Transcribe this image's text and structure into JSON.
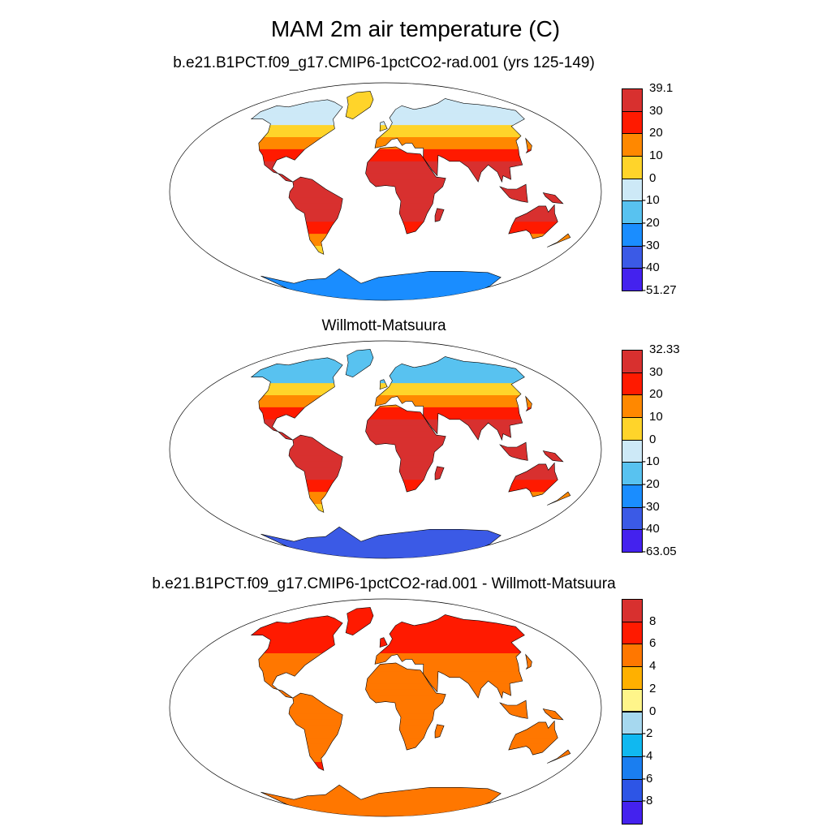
{
  "title": "MAM 2m air temperature (C)",
  "panels": [
    {
      "title": "b.e21.B1PCT.f09_g17.CMIP6-1pctCO2-rad.001 (yrs 125-149)",
      "colorbar": {
        "labels": [
          "39.1",
          "30",
          "20",
          "10",
          "0",
          "-10",
          "-20",
          "-30",
          "-40",
          "-51.27"
        ],
        "colors": [
          "#d8302f",
          "#ff1a00",
          "#ff8800",
          "#ffd42a",
          "#cde9f7",
          "#58c2f0",
          "#1a8dff",
          "#3b5ae6",
          "#4422ee"
        ]
      }
    },
    {
      "title": "Willmott-Matsuura",
      "colorbar": {
        "labels": [
          "32.33",
          "30",
          "20",
          "10",
          "0",
          "-10",
          "-20",
          "-30",
          "-40",
          "-63.05"
        ],
        "colors": [
          "#d8302f",
          "#ff1a00",
          "#ff8800",
          "#ffd42a",
          "#cde9f7",
          "#58c2f0",
          "#1a8dff",
          "#3b5ae6",
          "#4422ee"
        ]
      }
    },
    {
      "title": "b.e21.B1PCT.f09_g17.CMIP6-1pctCO2-rad.001 - Willmott-Matsuura",
      "colorbar": {
        "labels": [
          "8",
          "6",
          "4",
          "2",
          "0",
          "-2",
          "-4",
          "-6",
          "-8"
        ],
        "colors": [
          "#d8302f",
          "#ff1a00",
          "#ff7700",
          "#ffb000",
          "#fff58a",
          "#a6d8ef",
          "#10b8f0",
          "#1a7ef0",
          "#2d55e6",
          "#4422ee"
        ]
      }
    }
  ]
}
